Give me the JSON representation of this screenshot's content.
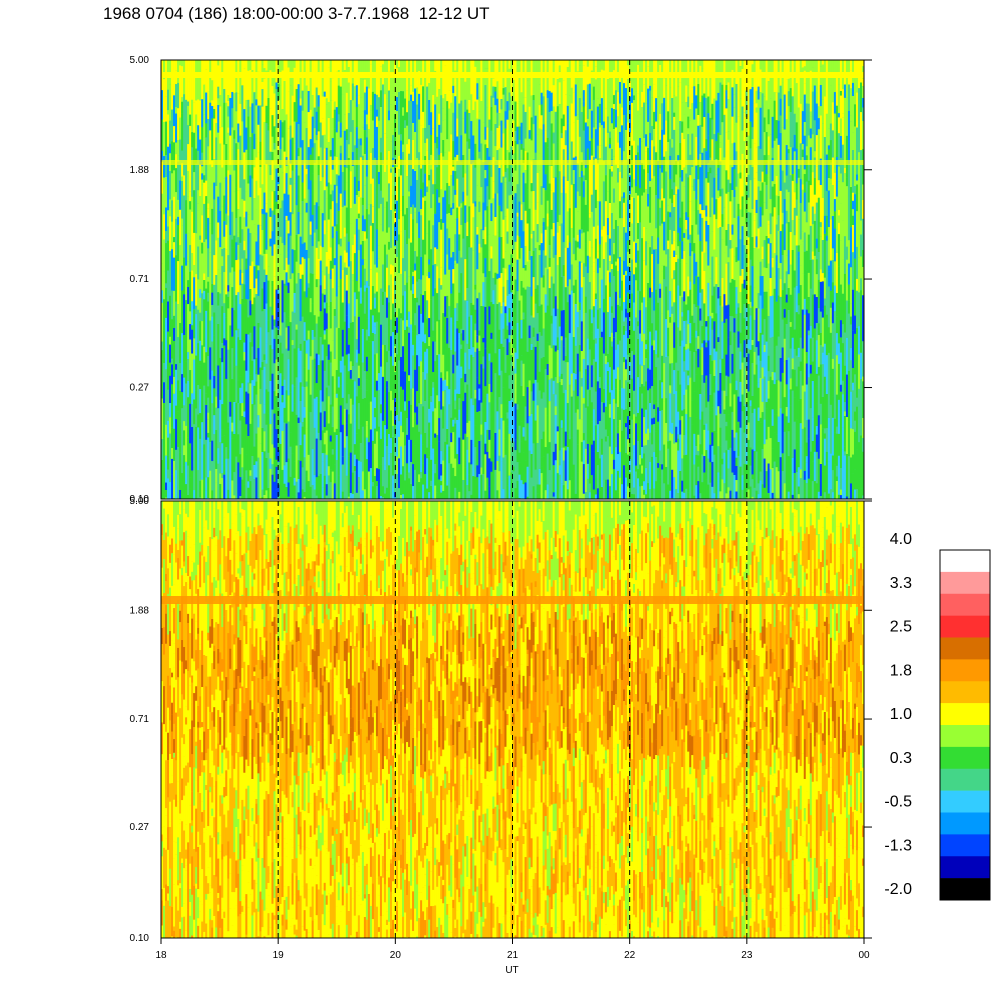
{
  "title": "1968 0704 (186) 18:00-00:00 3-7.7.1968  12-12 UT",
  "chart_data": [
    {
      "type": "heatmap",
      "panel": "top",
      "y_tick_labels": [
        "5.00",
        "1.88",
        "0.71",
        "0.27",
        "0.10"
      ],
      "y_scale": "log",
      "ylim": [
        0.1,
        5.0
      ],
      "xlim": [
        18,
        24
      ],
      "dominant_levels": [
        0.3,
        0.0,
        -0.5
      ],
      "grid_dashed_x": [
        19,
        20,
        21,
        22,
        23
      ]
    },
    {
      "type": "heatmap",
      "panel": "bottom",
      "y_tick_labels": [
        "5.00",
        "1.88",
        "0.71",
        "0.27",
        "0.10"
      ],
      "y_scale": "log",
      "ylim": [
        0.1,
        5.0
      ],
      "xlim": [
        18,
        24
      ],
      "dominant_levels": [
        1.4,
        1.8,
        2.2
      ],
      "grid_dashed_x": [
        19,
        20,
        21,
        22,
        23
      ]
    }
  ],
  "x_axis": {
    "label": "UT",
    "tick_labels": [
      "18",
      "19",
      "20",
      "21",
      "22",
      "23",
      "00"
    ]
  },
  "colorbar": {
    "labels": [
      "4.0",
      "3.3",
      "2.5",
      "1.8",
      "1.0",
      "0.3",
      "-0.5",
      "-1.3",
      "-2.0"
    ],
    "colors": [
      "#ffffff",
      "#ff9a9a",
      "#ff6060",
      "#ff3030",
      "#d86f00",
      "#ff9900",
      "#ffbb00",
      "#ffff00",
      "#99ff33",
      "#33dd33",
      "#44d688",
      "#33ccff",
      "#0099ff",
      "#0044ff",
      "#0000bb",
      "#000000"
    ]
  },
  "palette": {
    "top": [
      "#44d688",
      "#33dd33",
      "#99ff33",
      "#33ccff",
      "#ffff00",
      "#0099ff",
      "#0044ff"
    ],
    "bottom": [
      "#ffbb00",
      "#ff9900",
      "#ffff00",
      "#d86f00",
      "#99ff33",
      "#33dd33",
      "#ff3030"
    ]
  }
}
